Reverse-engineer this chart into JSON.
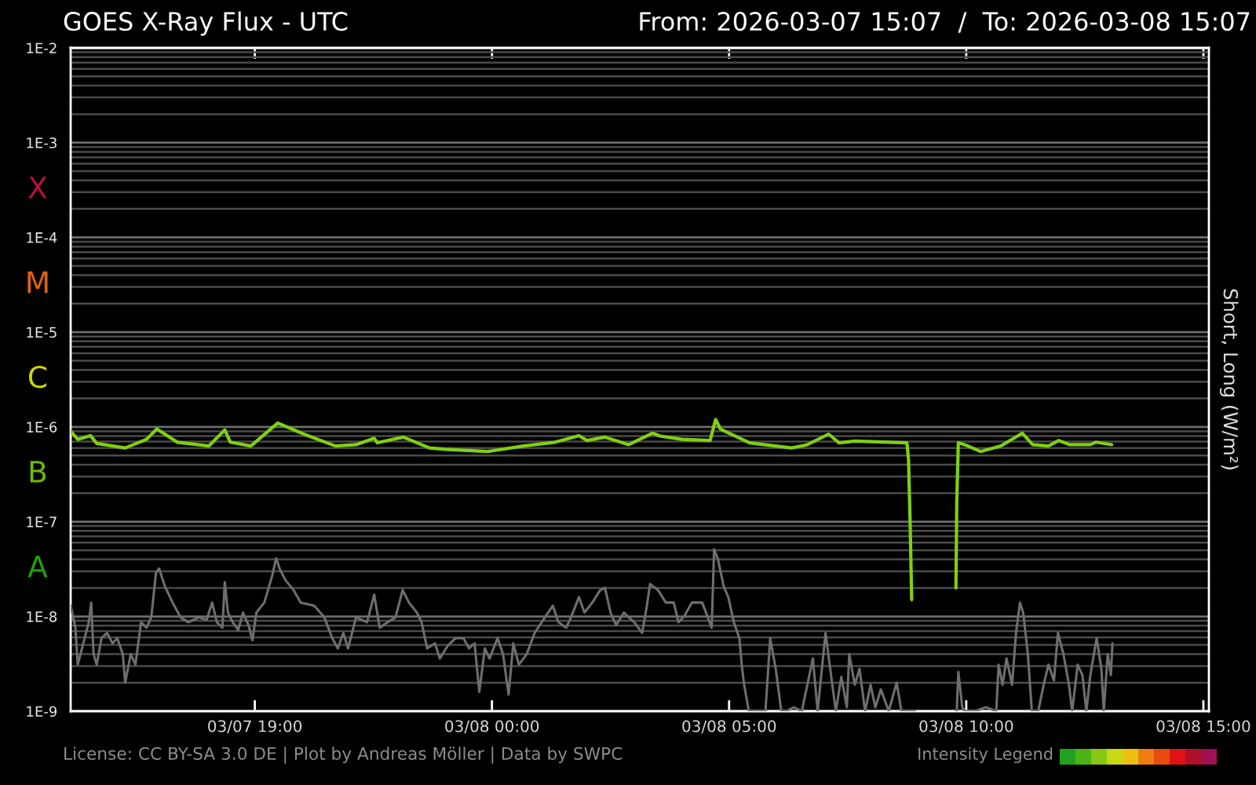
{
  "chart_data": {
    "type": "line",
    "title": "GOES X-Ray Flux - UTC",
    "subtitle": "From: 2026-03-07 15:07  /  To: 2026-03-08 15:07",
    "ylabel": "Short, Long (W/m²)",
    "annotations": [
      "License: CC BY-SA 3.0 DE | Plot by Andreas Möller | Data by SWPC",
      "Intensity Legend",
      "X",
      "M",
      "C",
      "B",
      "A"
    ],
    "series": [
      {
        "color": "#6e6e6e",
        "x": [
          "2026-03-07T15:07",
          "2026-03-07T15:13",
          "2026-03-07T15:16",
          "2026-03-07T15:23",
          "2026-03-07T15:30",
          "2026-03-07T15:33",
          "2026-03-07T15:36",
          "2026-03-07T15:40",
          "2026-03-07T15:46",
          "2026-03-07T15:53",
          "2026-03-07T16:00",
          "2026-03-07T16:06",
          "2026-03-07T16:13",
          "2026-03-07T16:16",
          "2026-03-07T16:23",
          "2026-03-07T16:29",
          "2026-03-07T16:36",
          "2026-03-07T16:43",
          "2026-03-07T16:49",
          "2026-03-07T16:55",
          "2026-03-07T16:59",
          "2026-03-07T17:06",
          "2026-03-07T17:16",
          "2026-03-07T17:26",
          "2026-03-07T17:36",
          "2026-03-07T17:49",
          "2026-03-07T17:59",
          "2026-03-07T18:06",
          "2026-03-07T18:12",
          "2026-03-07T18:19",
          "2026-03-07T18:22",
          "2026-03-07T18:26",
          "2026-03-07T18:32",
          "2026-03-07T18:39",
          "2026-03-07T18:45",
          "2026-03-07T18:52",
          "2026-03-07T18:57",
          "2026-03-07T19:02",
          "2026-03-07T19:12",
          "2026-03-07T19:22",
          "2026-03-07T19:27",
          "2026-03-07T19:32",
          "2026-03-07T19:39",
          "2026-03-07T19:49",
          "2026-03-07T19:58",
          "2026-03-07T20:15",
          "2026-03-07T20:28",
          "2026-03-07T20:38",
          "2026-03-07T20:45",
          "2026-03-07T20:52",
          "2026-03-07T20:58",
          "2026-03-07T21:08",
          "2026-03-07T21:22",
          "2026-03-07T21:31",
          "2026-03-07T21:38",
          "2026-03-07T21:48",
          "2026-03-07T21:58",
          "2026-03-07T22:07",
          "2026-03-07T22:15",
          "2026-03-07T22:25",
          "2026-03-07T22:31",
          "2026-03-07T22:38",
          "2026-03-07T22:48",
          "2026-03-07T22:54",
          "2026-03-07T23:04",
          "2026-03-07T23:14",
          "2026-03-07T23:24",
          "2026-03-07T23:31",
          "2026-03-07T23:38",
          "2026-03-07T23:44",
          "2026-03-07T23:51",
          "2026-03-07T23:57",
          "2026-03-08T00:07",
          "2026-03-08T00:14",
          "2026-03-08T00:21",
          "2026-03-08T00:27",
          "2026-03-08T00:34",
          "2026-03-08T00:44",
          "2026-03-08T00:54",
          "2026-03-08T01:07",
          "2026-03-08T01:17",
          "2026-03-08T01:24",
          "2026-03-08T01:34",
          "2026-03-08T01:40",
          "2026-03-08T01:50",
          "2026-03-08T01:57",
          "2026-03-08T02:07",
          "2026-03-08T02:17",
          "2026-03-08T02:23",
          "2026-03-08T02:30",
          "2026-03-08T02:37",
          "2026-03-08T02:47",
          "2026-03-08T02:53",
          "2026-03-08T03:00",
          "2026-03-08T03:10",
          "2026-03-08T03:16",
          "2026-03-08T03:20",
          "2026-03-08T03:30",
          "2026-03-08T03:40",
          "2026-03-08T03:50",
          "2026-03-08T03:56",
          "2026-03-08T04:03",
          "2026-03-08T04:13",
          "2026-03-08T04:26",
          "2026-03-08T04:33",
          "2026-03-08T04:38",
          "2026-03-08T04:41",
          "2026-03-08T04:46",
          "2026-03-08T04:53",
          "2026-03-08T04:59",
          "2026-03-08T05:06",
          "2026-03-08T05:13",
          "2026-03-08T05:16",
          "2026-03-08T05:19",
          "2026-03-08T05:25",
          "2026-03-08T05:46",
          "2026-03-08T05:52",
          "2026-03-08T05:59",
          "2026-03-08T06:06",
          "2026-03-08T06:12",
          "2026-03-08T06:22",
          "2026-03-08T06:32",
          "2026-03-08T06:46",
          "2026-03-08T06:52",
          "2026-03-08T07:02",
          "2026-03-08T07:09",
          "2026-03-08T07:15",
          "2026-03-08T07:22",
          "2026-03-08T07:29",
          "2026-03-08T07:32",
          "2026-03-08T07:39",
          "2026-03-08T07:45",
          "2026-03-08T07:52",
          "2026-03-08T07:59",
          "2026-03-08T08:05",
          "2026-03-08T08:12",
          "2026-03-08T08:22",
          "2026-03-08T08:32",
          "2026-03-08T08:38",
          "2026-03-08T08:55",
          "2026-03-08T09:20",
          "2026-03-08T09:48",
          "2026-03-08T09:50",
          "2026-03-08T09:55",
          "2026-03-08T09:58",
          "2026-03-08T10:11",
          "2026-03-08T10:25",
          "2026-03-08T10:38",
          "2026-03-08T10:41",
          "2026-03-08T10:46",
          "2026-03-08T10:51",
          "2026-03-08T10:58",
          "2026-03-08T11:03",
          "2026-03-08T11:08",
          "2026-03-08T11:12",
          "2026-03-08T11:18",
          "2026-03-08T11:23",
          "2026-03-08T11:31",
          "2026-03-08T11:38",
          "2026-03-08T11:44",
          "2026-03-08T11:51",
          "2026-03-08T11:56",
          "2026-03-08T12:03",
          "2026-03-08T12:10",
          "2026-03-08T12:14",
          "2026-03-08T12:21",
          "2026-03-08T12:27",
          "2026-03-08T12:32",
          "2026-03-08T12:37",
          "2026-03-08T12:45",
          "2026-03-08T12:51",
          "2026-03-08T12:54",
          "2026-03-08T12:59",
          "2026-03-08T13:03",
          "2026-03-08T13:05"
        ],
        "values": [
          1.3e-08,
          7.6e-09,
          3.1e-09,
          5.2e-09,
          8.7e-09,
          1.4e-08,
          4e-09,
          3.1e-09,
          5.9e-09,
          6.7e-09,
          5.2e-09,
          5.9e-09,
          4e-09,
          2e-09,
          4e-09,
          3.1e-09,
          8.7e-09,
          7.6e-09,
          9.8e-09,
          2.9e-08,
          3.2e-08,
          2.1e-08,
          1.4e-08,
          9.8e-09,
          8.7e-09,
          9.8e-09,
          9.2e-09,
          1.4e-08,
          8.7e-09,
          7.6e-09,
          2.3e-08,
          1.1e-08,
          8.7e-09,
          7.2e-09,
          1.1e-08,
          8.1e-09,
          5.6e-09,
          1.1e-08,
          1.4e-08,
          2.7e-08,
          4.1e-08,
          3.1e-08,
          2.4e-08,
          1.9e-08,
          1.4e-08,
          1.3e-08,
          9.8e-09,
          5.9e-09,
          4.6e-09,
          6.7e-09,
          4.6e-09,
          9.8e-09,
          8.7e-09,
          1.7e-08,
          7.6e-09,
          8.7e-09,
          9.8e-09,
          1.9e-08,
          1.4e-08,
          1.1e-08,
          8.7e-09,
          4.6e-09,
          5.2e-09,
          3.6e-09,
          4.9e-09,
          5.9e-09,
          5.9e-09,
          4.6e-09,
          5.2e-09,
          1.6e-09,
          4.6e-09,
          3.6e-09,
          5.9e-09,
          4e-09,
          1.5e-09,
          5.2e-09,
          3.1e-09,
          4e-09,
          6.7e-09,
          9.8e-09,
          1.3e-08,
          8.7e-09,
          7.6e-09,
          9.8e-09,
          1.6e-08,
          1.1e-08,
          1.4e-08,
          1.9e-08,
          2e-08,
          1.1e-08,
          8.1e-09,
          1.1e-08,
          9.8e-09,
          8.7e-09,
          6.7e-09,
          1.3e-08,
          2.2e-08,
          1.9e-08,
          1.4e-08,
          1.4e-08,
          8.7e-09,
          1e-08,
          1.4e-08,
          1.4e-08,
          9.8e-09,
          7.6e-09,
          5.1e-08,
          4e-08,
          2.1e-08,
          1.6e-08,
          8.7e-09,
          5.9e-09,
          3.1e-09,
          1.9e-09,
          1e-09,
          1e-09,
          5.9e-09,
          2.8e-09,
          1e-09,
          1e-09,
          1.1e-09,
          1e-09,
          3.6e-09,
          1e-09,
          6.7e-09,
          2.4e-09,
          1e-09,
          2.3e-09,
          1.1e-09,
          4e-09,
          1.9e-09,
          2.8e-09,
          1e-09,
          1.9e-09,
          1.1e-09,
          1.7e-09,
          1e-09,
          2e-09,
          1e-09,
          1e-09,
          null,
          1e-09,
          2.6e-09,
          1.1e-09,
          1e-09,
          1e-09,
          1.1e-09,
          1e-09,
          3.1e-09,
          1.9e-09,
          3.6e-09,
          1.9e-09,
          6.7e-09,
          1.4e-08,
          1.1e-08,
          4e-09,
          1e-09,
          1e-09,
          1.9e-09,
          3.1e-09,
          2.1e-09,
          6.7e-09,
          4e-09,
          1.9e-09,
          1e-09,
          3.1e-09,
          2.4e-09,
          1e-09,
          2.4e-09,
          5.9e-09,
          2.8e-09,
          1e-09,
          4e-09,
          2.4e-09,
          5.2e-09
        ]
      },
      {
        "color": "#80d010",
        "x": [
          "2026-03-07T15:07",
          "2026-03-07T15:16",
          "2026-03-07T15:32",
          "2026-03-07T15:40",
          "2026-03-07T16:16",
          "2026-03-07T16:43",
          "2026-03-07T16:56",
          "2026-03-07T17:22",
          "2026-03-07T18:02",
          "2026-03-07T18:22",
          "2026-03-07T18:29",
          "2026-03-07T18:55",
          "2026-03-07T19:29",
          "2026-03-07T20:02",
          "2026-03-07T20:42",
          "2026-03-07T21:08",
          "2026-03-07T21:31",
          "2026-03-07T21:35",
          "2026-03-07T22:08",
          "2026-03-07T22:41",
          "2026-03-07T23:01",
          "2026-03-07T23:54",
          "2026-03-08T00:40",
          "2026-03-08T01:20",
          "2026-03-08T01:50",
          "2026-03-08T02:00",
          "2026-03-08T02:23",
          "2026-03-08T02:53",
          "2026-03-08T03:23",
          "2026-03-08T03:33",
          "2026-03-08T04:00",
          "2026-03-08T04:36",
          "2026-03-08T04:43",
          "2026-03-08T04:49",
          "2026-03-08T05:26",
          "2026-03-08T06:19",
          "2026-03-08T06:39",
          "2026-03-08T07:06",
          "2026-03-08T07:19",
          "2026-03-08T07:39",
          "2026-03-08T08:45",
          "2026-03-08T08:47",
          "2026-03-08T08:49",
          "2026-03-08T08:51",
          "2026-03-08T09:20",
          "2026-03-08T09:47",
          "2026-03-08T09:48",
          "2026-03-08T09:50",
          "2026-03-08T09:58",
          "2026-03-08T10:18",
          "2026-03-08T10:44",
          "2026-03-08T11:11",
          "2026-03-08T11:24",
          "2026-03-08T11:44",
          "2026-03-08T11:57",
          "2026-03-08T12:11",
          "2026-03-08T12:37",
          "2026-03-08T12:44",
          "2026-03-08T13:04"
        ],
        "values": [
          9e-07,
          7.4e-07,
          8.1e-07,
          6.7e-07,
          6e-07,
          7.4e-07,
          9.5e-07,
          6.9e-07,
          6.3e-07,
          9.3e-07,
          6.9e-07,
          6.3e-07,
          1.1e-06,
          8.4e-07,
          6.3e-07,
          6.5e-07,
          7.6e-07,
          6.8e-07,
          7.8e-07,
          6e-07,
          5.8e-07,
          5.5e-07,
          6.3e-07,
          6.9e-07,
          8.1e-07,
          7.2e-07,
          7.8e-07,
          6.5e-07,
          8.6e-07,
          8e-07,
          7.4e-07,
          7.2e-07,
          1.2e-06,
          9.5e-07,
          6.8e-07,
          6e-07,
          6.5e-07,
          8.4e-07,
          6.8e-07,
          7.1e-07,
          6.8e-07,
          4.5e-07,
          1e-07,
          1.5e-08,
          null,
          2e-08,
          1.6e-07,
          6.8e-07,
          6.5e-07,
          5.5e-07,
          6.3e-07,
          8.6e-07,
          6.5e-07,
          6.3e-07,
          7.2e-07,
          6.5e-07,
          6.5e-07,
          6.9e-07,
          6.5e-07
        ]
      }
    ],
    "log": "y",
    "xlim": [
      "2026-03-07T15:07",
      "2026-03-08T15:07"
    ],
    "xticks": [
      {
        "value": "2026-03-07T19:00",
        "label": "03/07 19:00"
      },
      {
        "value": "2026-03-08T00:00",
        "label": "03/08 00:00"
      },
      {
        "value": "2026-03-08T05:00",
        "label": "03/08 05:00"
      },
      {
        "value": "2026-03-08T10:00",
        "label": "03/08 10:00"
      },
      {
        "value": "2026-03-08T15:00",
        "label": "03/08 15:00"
      }
    ],
    "ylim": [
      1e-09,
      0.01
    ],
    "yticks": [
      {
        "value": 1e-09,
        "label": "1E-9"
      },
      {
        "value": 1e-08,
        "label": "1E-8"
      },
      {
        "value": 1e-07,
        "label": "1E-7"
      },
      {
        "value": 1e-06,
        "label": "1E-6"
      },
      {
        "value": 1e-05,
        "label": "1E-5"
      },
      {
        "value": 0.0001,
        "label": "1E-4"
      },
      {
        "value": 0.001,
        "label": "1E-3"
      },
      {
        "value": 0.01,
        "label": "1E-2"
      }
    ],
    "grid": "y",
    "line_style": "solid"
  }
}
